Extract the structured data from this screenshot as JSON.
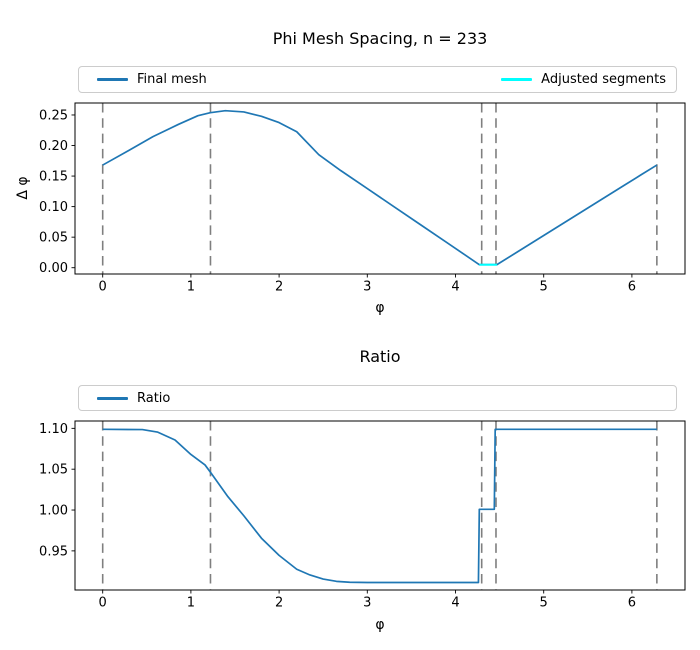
{
  "figure": {
    "background": "#ffffff",
    "axes_edge_color": "#000000",
    "tick_label_color": "#000000"
  },
  "chart_data": [
    {
      "type": "line",
      "title": "Phi Mesh Spacing, n = 233",
      "xlabel": "φ",
      "ylabel": "Δ φ",
      "xlim": [
        -0.314,
        6.602
      ],
      "ylim": [
        -0.0103,
        0.2696
      ],
      "xticks": [
        0,
        1,
        2,
        3,
        4,
        5,
        6
      ],
      "xtick_labels": [
        "0",
        "1",
        "2",
        "3",
        "4",
        "5",
        "6"
      ],
      "yticks": [
        0.0,
        0.05,
        0.1,
        0.15,
        0.2,
        0.25
      ],
      "ytick_labels": [
        "0.00",
        "0.05",
        "0.10",
        "0.15",
        "0.20",
        "0.25"
      ],
      "grid": false,
      "legend_position": "upper center, expanded full width, 2 columns",
      "legend": [
        {
          "label": "Final mesh",
          "color": "#1f77b4"
        },
        {
          "label": "Adjusted segments",
          "color": "#00ffff"
        }
      ],
      "vlines": {
        "x": [
          0,
          1.222,
          4.297,
          4.459,
          6.283
        ],
        "color": "#7f7f7f",
        "style": "dashed"
      },
      "series": [
        {
          "name": "Final mesh",
          "color": "#1f77b4",
          "x": [
            0,
            0.29,
            0.57,
            0.86,
            1.08,
            1.22,
            1.39,
            1.6,
            1.8,
            2.0,
            2.2,
            2.45,
            2.7,
            3.0,
            3.3,
            3.6,
            3.9,
            4.1,
            4.27,
            4.47,
            4.7,
            5.0,
            5.3,
            5.6,
            5.9,
            6.1,
            6.283
          ],
          "y": [
            0.168,
            0.1915,
            0.2145,
            0.2347,
            0.2488,
            0.2537,
            0.257,
            0.255,
            0.2478,
            0.2375,
            0.2225,
            0.185,
            0.1589,
            0.1295,
            0.1001,
            0.0707,
            0.0413,
            0.0217,
            0.005,
            0.005,
            0.0257,
            0.0527,
            0.0797,
            0.1067,
            0.1337,
            0.1517,
            0.168
          ]
        },
        {
          "name": "Adjusted segments",
          "color": "#00ffff",
          "x": [
            4.27,
            4.47
          ],
          "y": [
            0.0048,
            0.0048
          ]
        }
      ]
    },
    {
      "type": "line",
      "title": "Ratio",
      "xlabel": "φ",
      "ylabel": "",
      "xlim": [
        -0.314,
        6.602
      ],
      "ylim": [
        0.9021,
        1.109
      ],
      "xticks": [
        0,
        1,
        2,
        3,
        4,
        5,
        6
      ],
      "xtick_labels": [
        "0",
        "1",
        "2",
        "3",
        "4",
        "5",
        "6"
      ],
      "yticks": [
        0.95,
        1.0,
        1.05,
        1.1
      ],
      "ytick_labels": [
        "0.95",
        "1.00",
        "1.05",
        "1.10"
      ],
      "grid": false,
      "legend_position": "upper center, expanded full width, 1 column",
      "legend": [
        {
          "label": "Ratio",
          "color": "#1f77b4"
        }
      ],
      "vlines": {
        "x": [
          0,
          1.222,
          4.297,
          4.459,
          6.283
        ],
        "color": "#7f7f7f",
        "style": "dashed"
      },
      "series": [
        {
          "name": "Ratio",
          "color": "#1f77b4",
          "x": [
            0,
            0.45,
            0.62,
            0.82,
            1.0,
            1.16,
            1.23,
            1.42,
            1.6,
            1.8,
            2.0,
            2.2,
            2.35,
            2.5,
            2.65,
            2.8,
            3.0,
            3.5,
            4.0,
            4.26,
            4.27,
            4.44,
            4.45,
            5.0,
            5.6,
            6.283
          ],
          "y": [
            1.0988,
            1.0985,
            1.0955,
            1.0857,
            1.068,
            1.0552,
            1.045,
            1.0163,
            0.993,
            0.9655,
            0.9445,
            0.9275,
            0.9205,
            0.9155,
            0.9127,
            0.9116,
            0.9113,
            0.9113,
            0.9113,
            0.9113,
            1.0009,
            1.0009,
            1.0988,
            1.0988,
            1.0988,
            1.0988
          ]
        }
      ]
    }
  ]
}
